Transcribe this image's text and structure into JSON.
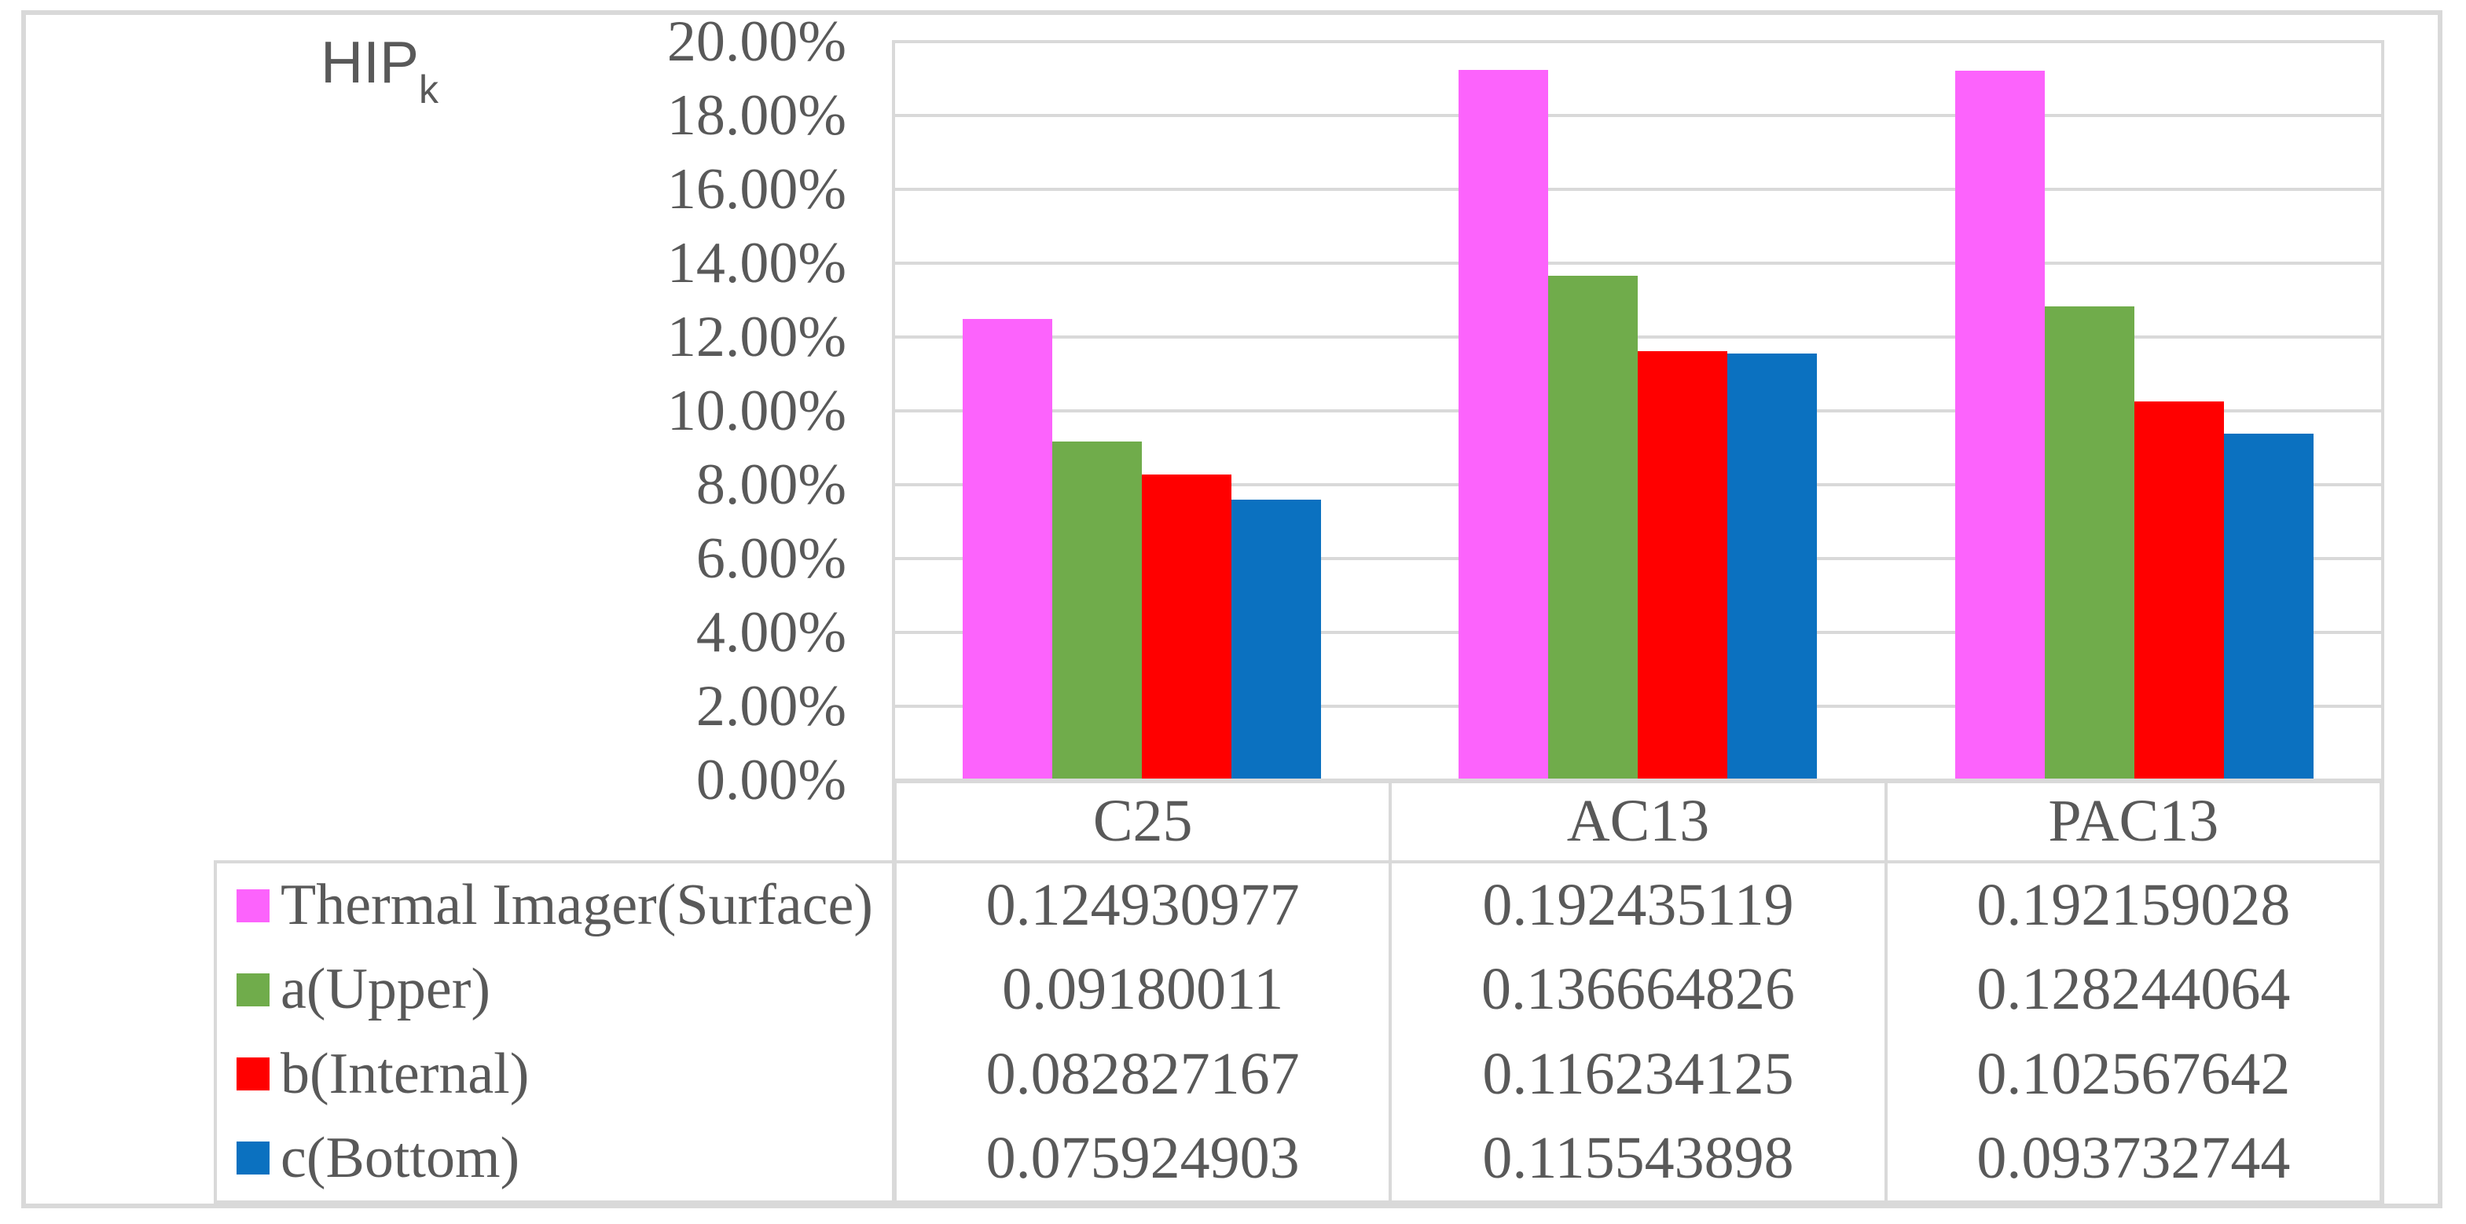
{
  "title": {
    "text": "HIP",
    "subscript": "k"
  },
  "chart_data": {
    "type": "bar",
    "title": "HIPk",
    "categories": [
      "C25",
      "AC13",
      "PAC13"
    ],
    "series": [
      {
        "name": "Thermal Imager(Surface)",
        "color": "#FC63FC",
        "values": [
          "0.124930977",
          "0.192435119",
          "0.192159028"
        ]
      },
      {
        "name": "a(Upper)",
        "color": "#70AC4B",
        "values": [
          "0.09180011",
          "0.136664826",
          "0.128244064"
        ]
      },
      {
        "name": "b(Internal)",
        "color": "#FF0000",
        "values": [
          "0.082827167",
          "0.116234125",
          "0.102567642"
        ]
      },
      {
        "name": "c(Bottom)",
        "color": "#0B71C0",
        "values": [
          "0.075924903",
          "0.115543898",
          "0.093732744"
        ]
      }
    ],
    "y_axis": {
      "min": 0,
      "max": 0.2,
      "step": 0.02,
      "tick_labels": [
        "20.00%",
        "18.00%",
        "16.00%",
        "14.00%",
        "12.00%",
        "10.00%",
        "8.00%",
        "6.00%",
        "4.00%",
        "2.00%",
        "0.00%"
      ]
    },
    "grid": true,
    "legend_position": "table-left"
  },
  "colors": {
    "background": "#FFFFFF",
    "grid": "#D9D9D9",
    "border": "#D9D9D9",
    "text": "#595959"
  }
}
